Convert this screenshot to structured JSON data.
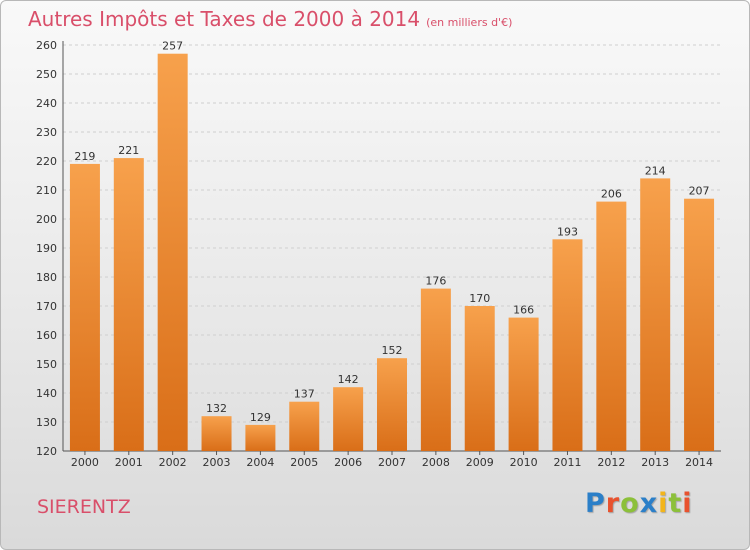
{
  "chart_data": {
    "type": "bar",
    "title": "Autres Impôts et Taxes de 2000 à 2014",
    "subtitle": "(en milliers d'€)",
    "categories": [
      "2000",
      "2001",
      "2002",
      "2003",
      "2004",
      "2005",
      "2006",
      "2007",
      "2008",
      "2009",
      "2010",
      "2011",
      "2012",
      "2013",
      "2014"
    ],
    "values": [
      219,
      221,
      257,
      132,
      129,
      137,
      142,
      152,
      176,
      170,
      166,
      193,
      206,
      214,
      207
    ],
    "ylim": [
      120,
      260
    ],
    "yticks": [
      120,
      130,
      140,
      150,
      160,
      170,
      180,
      190,
      200,
      210,
      220,
      230,
      240,
      250,
      260
    ],
    "grid": true,
    "bar_color_top": "#f7a14c",
    "bar_color_bottom": "#d96e18"
  },
  "footer": {
    "town": "SIERENTZ",
    "logo_letters": [
      {
        "ch": "P",
        "color": "#2b7fc8"
      },
      {
        "ch": "r",
        "color": "#e8522e"
      },
      {
        "ch": "o",
        "color": "#8cc03a"
      },
      {
        "ch": "x",
        "color": "#2b7fc8"
      },
      {
        "ch": "i",
        "color": "#f2b51b"
      },
      {
        "ch": "t",
        "color": "#8cc03a"
      },
      {
        "ch": "i",
        "color": "#e8522e"
      }
    ]
  }
}
